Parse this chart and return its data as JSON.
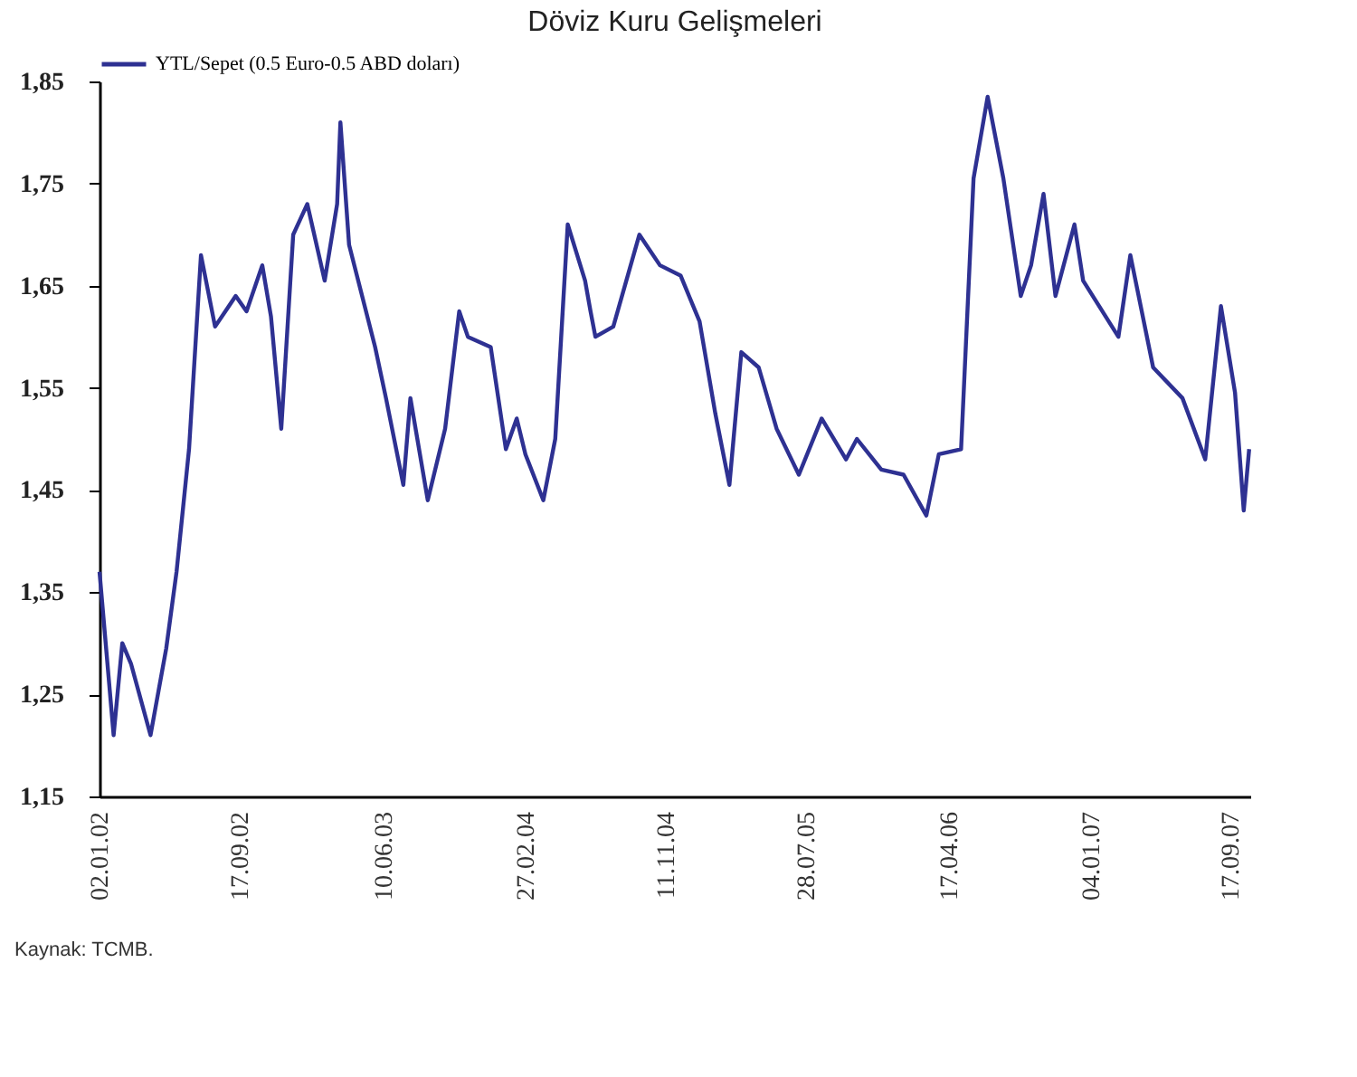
{
  "chart_data": {
    "type": "line",
    "title": "Döviz Kuru Gelişmeleri",
    "x": [
      "2002-01-02",
      "2002-01-28",
      "2002-02-13",
      "2002-03-01",
      "2002-04-06",
      "2002-05-05",
      "2002-05-24",
      "2002-06-16",
      "2002-07-08",
      "2002-08-03",
      "2002-09-10",
      "2002-09-30",
      "2002-10-29",
      "2002-11-14",
      "2002-12-03",
      "2002-12-25",
      "2003-01-20",
      "2003-02-21",
      "2003-03-16",
      "2003-03-22",
      "2003-04-07",
      "2003-05-25",
      "2003-06-14",
      "2003-07-16",
      "2003-07-29",
      "2003-08-30",
      "2003-10-01",
      "2003-10-27",
      "2003-11-12",
      "2003-12-24",
      "2004-01-21",
      "2004-02-10",
      "2004-02-26",
      "2004-03-30",
      "2004-04-21",
      "2004-05-14",
      "2004-06-15",
      "2004-06-25",
      "2004-07-04",
      "2004-08-06",
      "2004-09-23",
      "2004-10-31",
      "2004-12-08",
      "2005-01-12",
      "2005-02-10",
      "2005-03-08",
      "2005-03-30",
      "2005-05-01",
      "2005-06-03",
      "2005-07-14",
      "2005-08-25",
      "2005-10-09",
      "2005-10-29",
      "2005-12-13",
      "2006-01-23",
      "2006-03-06",
      "2006-03-29",
      "2006-05-09",
      "2006-06-01",
      "2006-06-27",
      "2006-07-26",
      "2006-08-27",
      "2006-09-15",
      "2006-10-08",
      "2006-10-30",
      "2006-12-04",
      "2006-12-20",
      "2007-02-23",
      "2007-03-17",
      "2007-04-28",
      "2007-06-21",
      "2007-08-02",
      "2007-08-31",
      "2007-09-26",
      "2007-10-12",
      "2007-10-22"
    ],
    "series": [
      {
        "name": "YTL/Sepet (0.5 Euro-0.5 ABD doları)",
        "color": "#2e3192",
        "values": [
          1.37,
          1.21,
          1.3,
          1.28,
          1.21,
          1.295,
          1.37,
          1.49,
          1.68,
          1.61,
          1.64,
          1.625,
          1.67,
          1.62,
          1.51,
          1.7,
          1.73,
          1.655,
          1.73,
          1.81,
          1.69,
          1.59,
          1.54,
          1.455,
          1.54,
          1.44,
          1.51,
          1.625,
          1.6,
          1.59,
          1.49,
          1.52,
          1.485,
          1.44,
          1.5,
          1.71,
          1.655,
          1.625,
          1.6,
          1.61,
          1.7,
          1.67,
          1.66,
          1.615,
          1.525,
          1.455,
          1.585,
          1.57,
          1.51,
          1.465,
          1.52,
          1.48,
          1.5,
          1.47,
          1.465,
          1.425,
          1.485,
          1.49,
          1.755,
          1.835,
          1.755,
          1.64,
          1.67,
          1.74,
          1.64,
          1.71,
          1.655,
          1.6,
          1.68,
          1.57,
          1.54,
          1.48,
          1.63,
          1.545,
          1.43,
          1.49
        ]
      }
    ],
    "xlim": [
      "2002-01-02",
      "2007-10-24"
    ],
    "xticks": [
      {
        "value": "2002-01-02",
        "label": "02.01.02"
      },
      {
        "value": "2002-09-17",
        "label": "17.09.02"
      },
      {
        "value": "2003-06-10",
        "label": "10.06.03"
      },
      {
        "value": "2004-02-27",
        "label": "27.02.04"
      },
      {
        "value": "2004-11-11",
        "label": "11.11.04"
      },
      {
        "value": "2005-07-28",
        "label": "28.07.05"
      },
      {
        "value": "2006-04-17",
        "label": "17.04.06"
      },
      {
        "value": "2007-01-04",
        "label": "04.01.07"
      },
      {
        "value": "2007-09-17",
        "label": "17.09.07"
      }
    ],
    "ylim": [
      1.15,
      1.85
    ],
    "yticks": [
      {
        "value": 1.15,
        "label": "1,15"
      },
      {
        "value": 1.25,
        "label": "1,25"
      },
      {
        "value": 1.35,
        "label": "1,35"
      },
      {
        "value": 1.45,
        "label": "1,45"
      },
      {
        "value": 1.55,
        "label": "1,55"
      },
      {
        "value": 1.65,
        "label": "1,65"
      },
      {
        "value": 1.75,
        "label": "1,75"
      },
      {
        "value": 1.85,
        "label": "1,85"
      }
    ],
    "legend": "top",
    "grid": false,
    "marker": "none",
    "line_style": "solid",
    "annotations": [
      "Kaynak: TCMB."
    ]
  }
}
